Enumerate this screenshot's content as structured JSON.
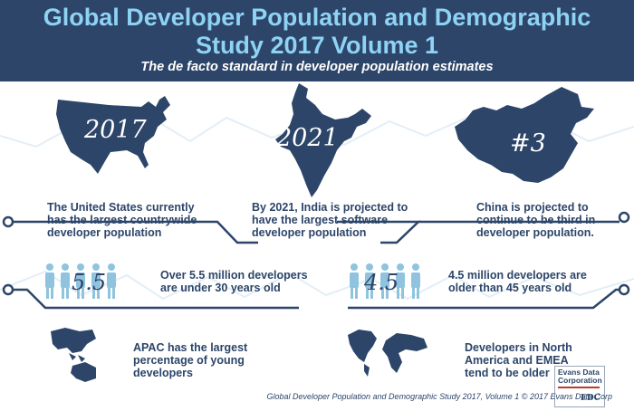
{
  "header": {
    "title_line1": "Global Developer Population and Demographic",
    "title_line2": "Study 2017 Volume 1",
    "subtitle": "The de facto standard in developer population estimates"
  },
  "maps": {
    "us_label": "2017",
    "india_label": "2021",
    "china_label": "#3"
  },
  "facts": {
    "us": [
      "The United States currently",
      "has the largest countrywide",
      "developer population"
    ],
    "india": [
      "By 2021, India is projected to",
      "have the largest software",
      "developer population"
    ],
    "china": [
      "China is projected to",
      "continue to be third in",
      "developer population."
    ],
    "young_count": "5.5",
    "young": [
      "Over 5.5 million developers",
      "are under 30 years old"
    ],
    "old_count": "4.5",
    "old": [
      "4.5 million developers are",
      "older than 45 years old"
    ],
    "apac": [
      "APAC has the largest",
      "percentage of young",
      "developers"
    ],
    "na_emea": [
      "Developers in North",
      "America and EMEA",
      "tend to be older"
    ]
  },
  "footer": {
    "text": "Global Developer Population and Demographic Study 2017, Volume 1 © 2017 Evans Data Corp"
  },
  "logo": {
    "line1": "Evans Data",
    "line2": "Corporation",
    "mark": "EDC"
  },
  "colors": {
    "navy": "#2c4569",
    "title_blue": "#8fd3f4",
    "people_blue": "#8fc3de",
    "faint_line": "#e3eef6",
    "logo_red": "#c0392b"
  }
}
